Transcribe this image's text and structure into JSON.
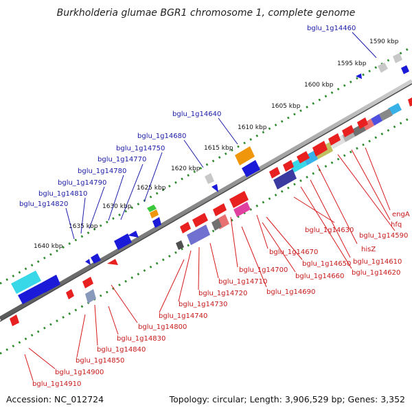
{
  "title": "Burkholderia glumae BGR1 chromosome 1, complete genome",
  "footer": {
    "accession": "Accession: NC_012724",
    "summary": "Topology: circular; Length: 3,906,529 bp; Genes: 3,352"
  },
  "scale_ticks": [
    "1590 kbp",
    "1595 kbp",
    "1600 kbp",
    "1605 kbp",
    "1610 kbp",
    "1615 kbp",
    "1620 kbp",
    "1625 kbp",
    "1630 kbp",
    "1635 kbp",
    "1640 kbp"
  ],
  "forward_gene_labels": [
    "bglu_1g14460",
    "bglu_1g14640",
    "bglu_1g14680",
    "bglu_1g14750",
    "bglu_1g14770",
    "bglu_1g14780",
    "bglu_1g14790",
    "bglu_1g14810",
    "bglu_1g14820"
  ],
  "reverse_gene_labels": [
    "engA",
    "hfq",
    "bglu_1g14590",
    "hisZ",
    "bglu_1g14630",
    "bglu_1g14610",
    "bglu_1g14620",
    "bglu_1g14670",
    "bglu_1g14650",
    "bglu_1g14660",
    "bglu_1g14700",
    "bglu_1g14690",
    "bglu_1g14710",
    "bglu_1g14720",
    "bglu_1g14730",
    "bglu_1g14740",
    "bglu_1g14800",
    "bglu_1g14830",
    "bglu_1g14840",
    "bglu_1g14850",
    "bglu_1g14900",
    "bglu_1g14910"
  ],
  "colors": {
    "forward_label": "#1a1aa8",
    "reverse_label": "#c81818",
    "backbone": "#888888",
    "scale_dots": "#2e8b2e",
    "forward_gene": "#1a1ad8",
    "reverse_gene": "#e82020"
  }
}
